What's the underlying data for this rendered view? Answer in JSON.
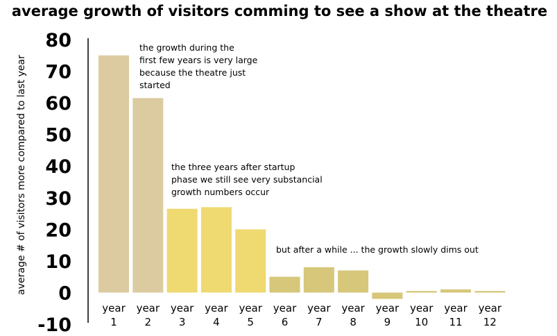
{
  "chart_data": {
    "type": "bar",
    "title": "average growth of visitors comming to see a show at the theatre",
    "xlabel": "",
    "ylabel": "average # of visitors more compared to last year",
    "ylim": [
      -10,
      80
    ],
    "yticks": [
      "80",
      "70",
      "60",
      "50",
      "40",
      "30",
      "20",
      "10",
      "0",
      "-10"
    ],
    "categories": [
      [
        "year",
        "1"
      ],
      [
        "year",
        "2"
      ],
      [
        "year",
        "3"
      ],
      [
        "year",
        "4"
      ],
      [
        "year",
        "5"
      ],
      [
        "year",
        "6"
      ],
      [
        "year",
        "7"
      ],
      [
        "year",
        "8"
      ],
      [
        "year",
        "9"
      ],
      [
        "year",
        "10"
      ],
      [
        "year",
        "11"
      ],
      [
        "year",
        "12"
      ]
    ],
    "values": [
      75,
      61.5,
      26.5,
      27,
      20,
      5,
      8,
      7,
      -2,
      0.5,
      1,
      0.5
    ],
    "bar_colors": [
      "#dccba1",
      "#dccba1",
      "#efd971",
      "#efd971",
      "#efd971",
      "#d6c77a",
      "#d6c77a",
      "#d6c77a",
      "#d6c77a",
      "#d6c77a",
      "#d6c77a",
      "#d6c77a"
    ],
    "grid": false,
    "annotations": [
      [
        "the growth during the",
        "first few years is very large",
        "because the theatre just",
        "started"
      ],
      [
        "the three years after startup",
        "phase we still see very substancial",
        "growth numbers occur"
      ],
      [
        "but after a while ... the growth slowly dims out"
      ]
    ]
  }
}
